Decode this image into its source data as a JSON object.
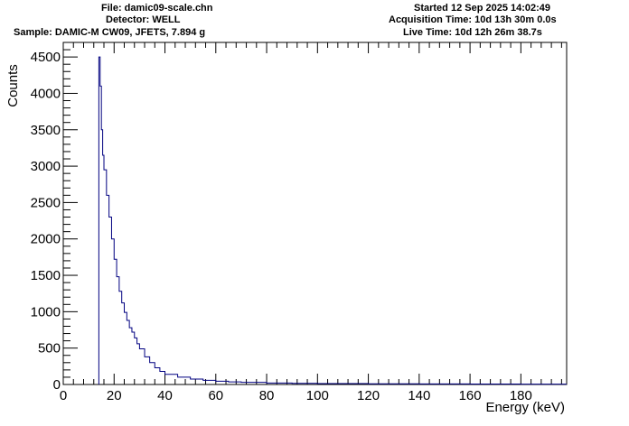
{
  "header": {
    "file": "File: damic09-scale.chn",
    "detector": "Detector: WELL",
    "sample": "Sample: DAMIC-M CW09, JFETS, 7.894 g",
    "started": "Started 12 Sep 2025 14:02:49",
    "acquisition": "Acquisition Time: 10d 13h 30m 0.0s",
    "live": "Live Time: 10d 12h 26m 38.7s"
  },
  "colors": {
    "histogram": "#000080",
    "axis": "#000000",
    "background": "#ffffff"
  },
  "chart_data": {
    "type": "line",
    "style": "histogram-step",
    "xlabel": "Energy (keV)",
    "ylabel": "Counts",
    "xlim": [
      0,
      198
    ],
    "ylim": [
      0,
      4700
    ],
    "xticks": [
      0,
      20,
      40,
      60,
      80,
      100,
      120,
      140,
      160,
      180
    ],
    "yticks": [
      0,
      500,
      1000,
      1500,
      2000,
      2500,
      3000,
      3500,
      4000,
      4500
    ],
    "grid": false,
    "series": [
      {
        "x": [
          14,
          14.5,
          15,
          15.5,
          16,
          17,
          18,
          19,
          20,
          21,
          22,
          23,
          24,
          25,
          26,
          27,
          28,
          29,
          30,
          32,
          34,
          36,
          38,
          40,
          45,
          50,
          55,
          60,
          65,
          70,
          80,
          90,
          100,
          120,
          140,
          160,
          180,
          198
        ],
        "y": [
          4500,
          4100,
          3500,
          3150,
          2950,
          2600,
          2300,
          2000,
          1720,
          1480,
          1280,
          1120,
          990,
          880,
          780,
          720,
          640,
          560,
          490,
          380,
          300,
          230,
          180,
          140,
          100,
          75,
          58,
          45,
          36,
          30,
          20,
          15,
          12,
          9,
          7,
          6,
          5,
          5
        ]
      }
    ]
  }
}
